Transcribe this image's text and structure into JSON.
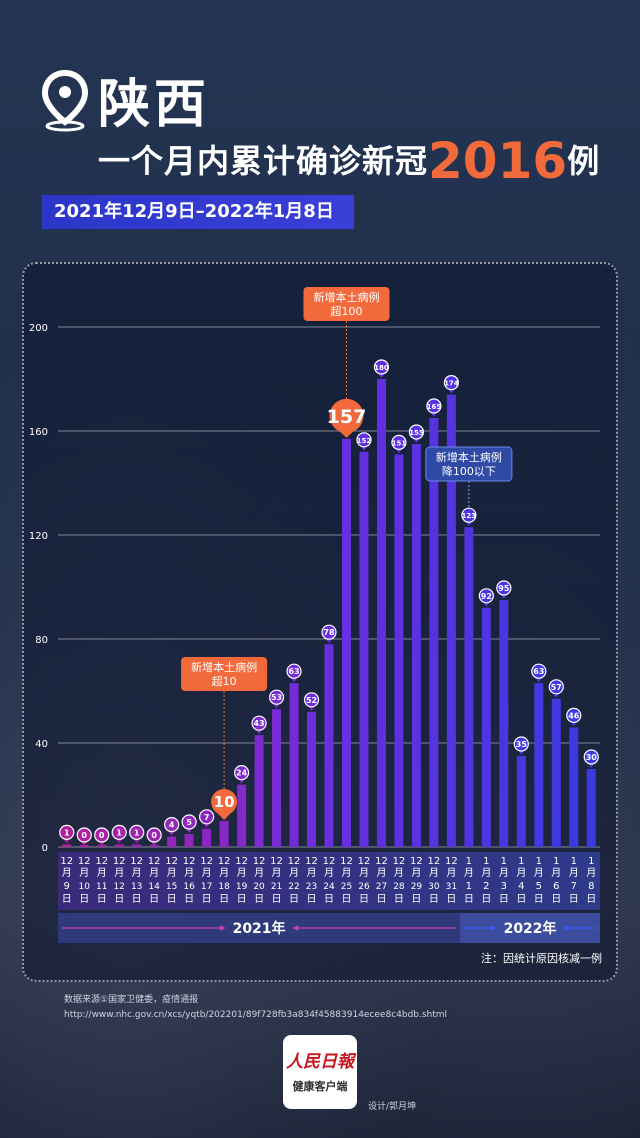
{
  "header": {
    "province": "陕西",
    "subtitle_prefix": "一个月内累计确诊新冠",
    "subtitle_number": "2016",
    "subtitle_suffix": "例",
    "date_range": "2021年12月9日–2022年1月8日"
  },
  "chart_data": {
    "type": "bar",
    "title": "",
    "xlabel": "",
    "ylabel": "",
    "ylim": [
      0,
      200
    ],
    "yticks": [
      "0",
      "40",
      "80",
      "120",
      "160",
      "200"
    ],
    "grid": true,
    "categories": [
      [
        "12月",
        "9日"
      ],
      [
        "12月",
        "10日"
      ],
      [
        "12月",
        "11日"
      ],
      [
        "12月",
        "12日"
      ],
      [
        "12月",
        "13日"
      ],
      [
        "12月",
        "14日"
      ],
      [
        "12月",
        "15日"
      ],
      [
        "12月",
        "16日"
      ],
      [
        "12月",
        "17日"
      ],
      [
        "12月",
        "18日"
      ],
      [
        "12月",
        "19日"
      ],
      [
        "12月",
        "20日"
      ],
      [
        "12月",
        "21日"
      ],
      [
        "12月",
        "22日"
      ],
      [
        "12月",
        "23日"
      ],
      [
        "12月",
        "24日"
      ],
      [
        "12月",
        "25日"
      ],
      [
        "12月",
        "26日"
      ],
      [
        "12月",
        "27日"
      ],
      [
        "12月",
        "28日"
      ],
      [
        "12月",
        "29日"
      ],
      [
        "12月",
        "30日"
      ],
      [
        "12月",
        "31日"
      ],
      [
        "1月",
        "1日"
      ],
      [
        "1月",
        "2日"
      ],
      [
        "1月",
        "3日"
      ],
      [
        "1月",
        "4日"
      ],
      [
        "1月",
        "5日"
      ],
      [
        "1月",
        "6日"
      ],
      [
        "1月",
        "7日"
      ],
      [
        "1月",
        "8日"
      ]
    ],
    "values": [
      1,
      0,
      0,
      1,
      1,
      0,
      4,
      5,
      7,
      10,
      24,
      43,
      53,
      63,
      52,
      78,
      157,
      152,
      180,
      151,
      155,
      165,
      174,
      123,
      92,
      95,
      35,
      63,
      57,
      46,
      30
    ],
    "highlight_indices": [
      9,
      16
    ],
    "year_labels": [
      {
        "label": "2021年",
        "from_index": 0,
        "to_index": 22
      },
      {
        "label": "2022年",
        "from_index": 23,
        "to_index": 30
      }
    ],
    "annotations": [
      {
        "index": 9,
        "lines": [
          "新增本土病例",
          "超10"
        ],
        "style": "orange"
      },
      {
        "index": 16,
        "lines": [
          "新增本土病例",
          "超100"
        ],
        "style": "orange"
      },
      {
        "index": 23,
        "lines": [
          "新增本土病例",
          "降100以下"
        ],
        "style": "blue"
      }
    ],
    "colors": {
      "start": "#b0209c",
      "mid": "#6a2ee0",
      "end": "#3a3ae0",
      "highlight": "#f26a3c",
      "axis_band": "#2e3a7a"
    }
  },
  "footer": {
    "note": "注：因统计原因核减一例",
    "source_line1": "数据来源①国家卫健委，疫情通报",
    "source_line2": "http://www.nhc.gov.cn/xcs/yqtb/202201/89f728fb3a834f45883914ecee8c4bdb.shtml",
    "logo_line1": "人民日報",
    "logo_line2": "健康客户端",
    "designer": "设计/郭月坤"
  }
}
